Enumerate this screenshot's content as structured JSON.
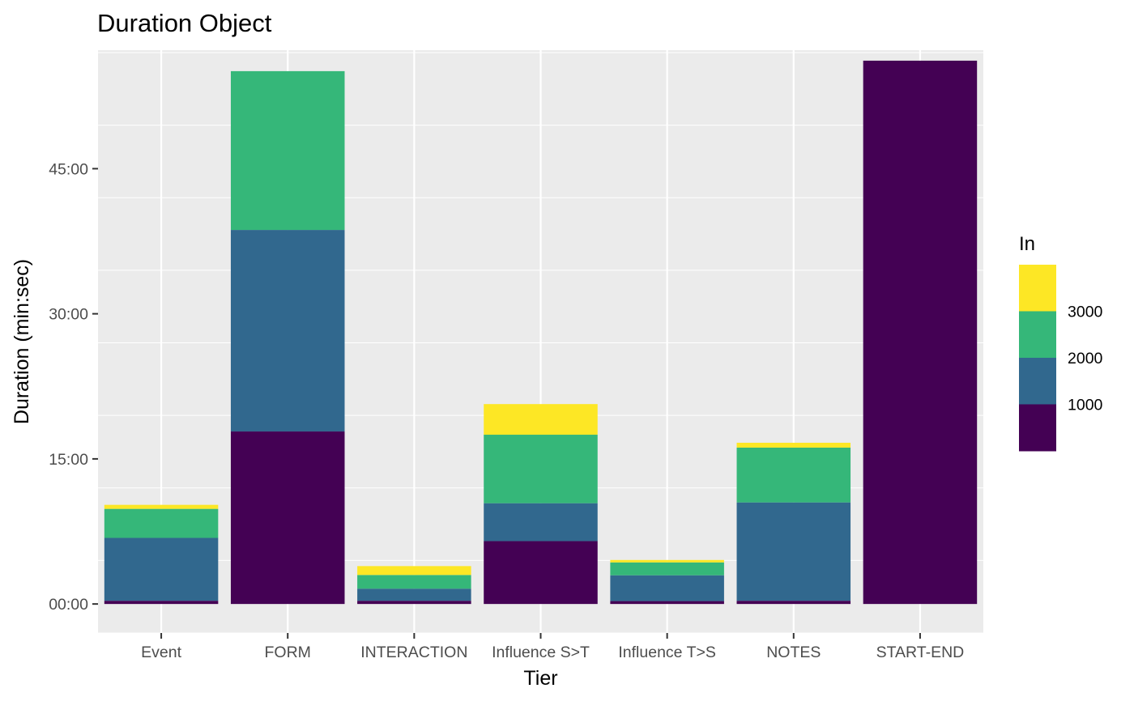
{
  "chart_data": {
    "type": "bar",
    "stacked": true,
    "title": "Duration Object",
    "xlabel": "Tier",
    "ylabel": "Duration (min:sec)",
    "y_unit": "seconds",
    "ylim": [
      -180,
      3435
    ],
    "y_ticks": [
      {
        "value": 0,
        "label": "00:00"
      },
      {
        "value": 900,
        "label": "15:00"
      },
      {
        "value": 1800,
        "label": "30:00"
      },
      {
        "value": 2700,
        "label": "45:00"
      }
    ],
    "grid": true,
    "categories": [
      "Event",
      "FORM",
      "INTERACTION",
      "Influence S>T",
      "Influence T>S",
      "NOTES",
      "START-END"
    ],
    "stacks": [
      {
        "category": "Event",
        "segments": [
          {
            "color_value": 500,
            "duration": 20
          },
          {
            "color_value": 1500,
            "duration": 390
          },
          {
            "color_value": 2500,
            "duration": 180
          },
          {
            "color_value": 3500,
            "duration": 25
          }
        ]
      },
      {
        "category": "FORM",
        "segments": [
          {
            "color_value": 500,
            "duration": 1070
          },
          {
            "color_value": 1500,
            "duration": 1250
          },
          {
            "color_value": 2500,
            "duration": 985
          }
        ]
      },
      {
        "category": "INTERACTION",
        "segments": [
          {
            "color_value": 500,
            "duration": 20
          },
          {
            "color_value": 1500,
            "duration": 75
          },
          {
            "color_value": 2500,
            "duration": 85
          },
          {
            "color_value": 3500,
            "duration": 55
          }
        ]
      },
      {
        "category": "Influence S>T",
        "segments": [
          {
            "color_value": 500,
            "duration": 390
          },
          {
            "color_value": 1500,
            "duration": 235
          },
          {
            "color_value": 2500,
            "duration": 425
          },
          {
            "color_value": 3500,
            "duration": 190
          }
        ]
      },
      {
        "category": "Influence T>S",
        "segments": [
          {
            "color_value": 500,
            "duration": 18
          },
          {
            "color_value": 1500,
            "duration": 160
          },
          {
            "color_value": 2500,
            "duration": 80
          },
          {
            "color_value": 3500,
            "duration": 15
          }
        ]
      },
      {
        "category": "NOTES",
        "segments": [
          {
            "color_value": 500,
            "duration": 20
          },
          {
            "color_value": 1500,
            "duration": 610
          },
          {
            "color_value": 2500,
            "duration": 340
          },
          {
            "color_value": 3500,
            "duration": 30
          }
        ]
      },
      {
        "category": "START-END",
        "segments": [
          {
            "color_value": 500,
            "duration": 3370
          }
        ]
      }
    ],
    "legend": {
      "title": "In",
      "placement": "right",
      "type": "binned",
      "labels": [
        "1000",
        "2000",
        "3000"
      ],
      "colors": [
        "#440154",
        "#31688e",
        "#35b779",
        "#fde725"
      ]
    },
    "colors": {
      "panel_background": "#ebebeb",
      "grid": "#ffffff",
      "axis_text": "#4d4d4d"
    }
  }
}
